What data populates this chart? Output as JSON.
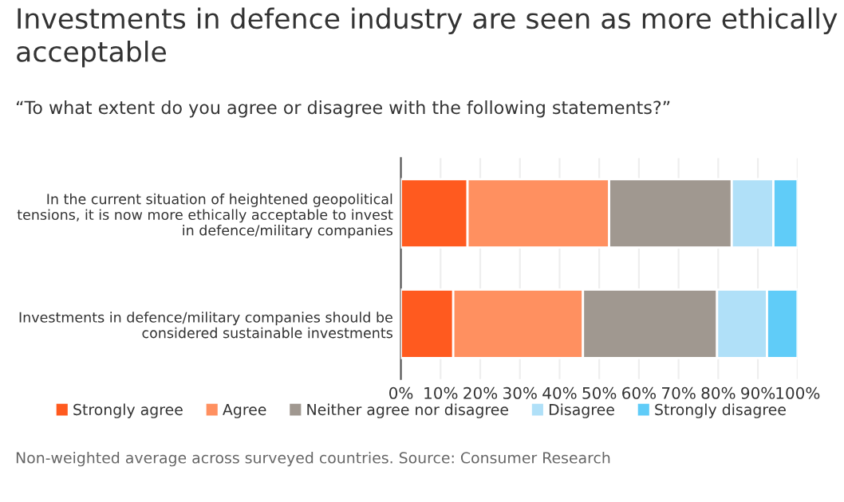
{
  "chart_data": {
    "type": "bar",
    "orientation": "horizontal",
    "stacked": true,
    "title": "Investments in defence industry are seen as more ethically\nacceptable",
    "subtitle": "“To what extent do you agree or disagree with the following statements?”",
    "categories": [
      "In the current situation of heightened geopolitical\ntensions, it is now more ethically acceptable to invest\nin defence/military companies",
      "Investments in defence/military companies should be\nconsidered sustainable investments"
    ],
    "series": [
      {
        "name": "Strongly agree",
        "color": "#ff5a1f",
        "values": [
          16.8,
          13.2
        ]
      },
      {
        "name": "Agree",
        "color": "#ff9060",
        "values": [
          35.7,
          32.7
        ]
      },
      {
        "name": "Neither agree nor disagree",
        "color": "#a09890",
        "values": [
          30.9,
          33.8
        ]
      },
      {
        "name": "Disagree",
        "color": "#b0e0f8",
        "values": [
          10.5,
          12.6
        ]
      },
      {
        "name": "Strongly disagree",
        "color": "#60ccf8",
        "values": [
          6.1,
          7.7
        ]
      }
    ],
    "xlim": [
      0,
      100
    ],
    "xticks": [
      {
        "value": 0,
        "label": "0%"
      },
      {
        "value": 10,
        "label": "10%"
      },
      {
        "value": 20,
        "label": "20%"
      },
      {
        "value": 30,
        "label": "30%"
      },
      {
        "value": 40,
        "label": "40%"
      },
      {
        "value": 50,
        "label": "50%"
      },
      {
        "value": 60,
        "label": "60%"
      },
      {
        "value": 70,
        "label": "70%"
      },
      {
        "value": 80,
        "label": "80%"
      },
      {
        "value": 90,
        "label": "90%"
      },
      {
        "value": 100,
        "label": "100%"
      }
    ],
    "grid": "x",
    "legend": "bottom",
    "annotations": [
      "Non-weighted average across surveyed countries. Source: Consumer Research"
    ]
  }
}
